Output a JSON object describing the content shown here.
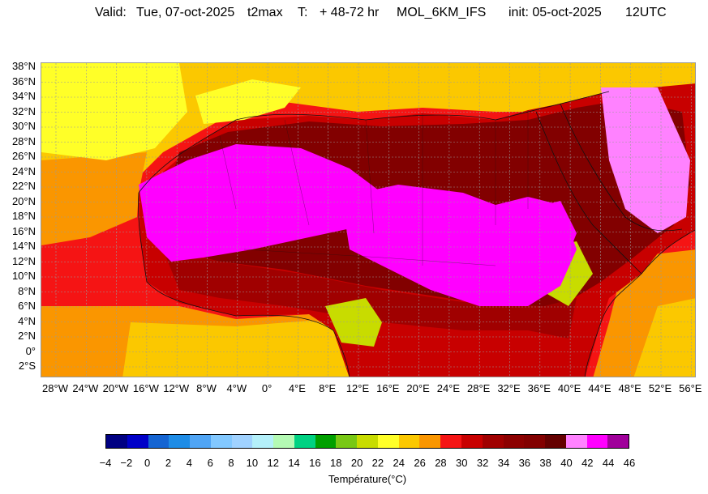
{
  "header": {
    "valid_label": "Valid:",
    "valid_date": "Tue, 07-oct-2025",
    "variable": "t2max",
    "t_label": "T:",
    "lead_time": "+ 48-72 hr",
    "model": "MOL_6KM_IFS",
    "init_label": "init: 05-oct-2025",
    "init_time": "12UTC"
  },
  "map": {
    "lat_labels": [
      "38°N",
      "36°N",
      "34°N",
      "32°N",
      "30°N",
      "28°N",
      "26°N",
      "24°N",
      "22°N",
      "20°N",
      "18°N",
      "16°N",
      "14°N",
      "12°N",
      "10°N",
      "8°N",
      "6°N",
      "4°N",
      "2°N",
      "0°",
      "2°S"
    ],
    "lon_labels": [
      "28°W",
      "24°W",
      "20°W",
      "16°W",
      "12°W",
      "8°W",
      "4°W",
      "0°",
      "4°E",
      "8°E",
      "12°E",
      "16°E",
      "20°E",
      "24°E",
      "28°E",
      "32°E",
      "36°E",
      "40°E",
      "44°E",
      "48°E",
      "52°E",
      "56°E"
    ],
    "colors": {
      "ocean_cool": "#fbc800",
      "ocean_warm": "#fa9600",
      "ocean_hot": "#f51414",
      "land_warm": "#c80000",
      "land_hot": "#820000",
      "land_very_hot": "#a00000",
      "extreme": "#ff00ff",
      "extreme_light": "#ff82ff",
      "cool_highlands": "#c8dc00",
      "mild": "#ffff28",
      "coast_line": "#111111",
      "grid": "#9a9a9a"
    }
  },
  "colorbar": {
    "title": "Température(°C)",
    "ticks": [
      "-4",
      "-2",
      "0",
      "2",
      "4",
      "6",
      "8",
      "10",
      "12",
      "14",
      "16",
      "18",
      "20",
      "22",
      "24",
      "26",
      "28",
      "30",
      "32",
      "34",
      "36",
      "38",
      "40",
      "42",
      "44",
      "46"
    ],
    "colors": [
      "#000082",
      "#0000c8",
      "#1464d2",
      "#1e8ce6",
      "#50a5f5",
      "#82c8ff",
      "#a0d2ff",
      "#b4f0fa",
      "#b4fab4",
      "#00d282",
      "#00a000",
      "#78c814",
      "#c8dc00",
      "#ffff28",
      "#fbc800",
      "#fa9600",
      "#f51414",
      "#c80000",
      "#a00000",
      "#8c0000",
      "#820000",
      "#640000",
      "#ff82ff",
      "#ff00ff",
      "#a0009b",
      "#8c64ff"
    ]
  }
}
